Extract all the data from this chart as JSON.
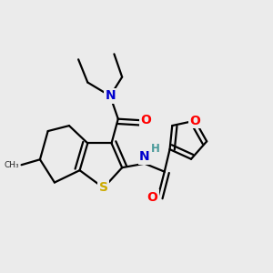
{
  "bg_color": "#ebebeb",
  "atom_colors": {
    "N": "#0000cd",
    "O": "#ff0000",
    "S": "#ccaa00",
    "C": "#000000",
    "H": "#4a9a9a"
  },
  "bond_color": "#000000",
  "bond_width": 1.6,
  "figsize": [
    3.0,
    3.0
  ],
  "dpi": 100
}
